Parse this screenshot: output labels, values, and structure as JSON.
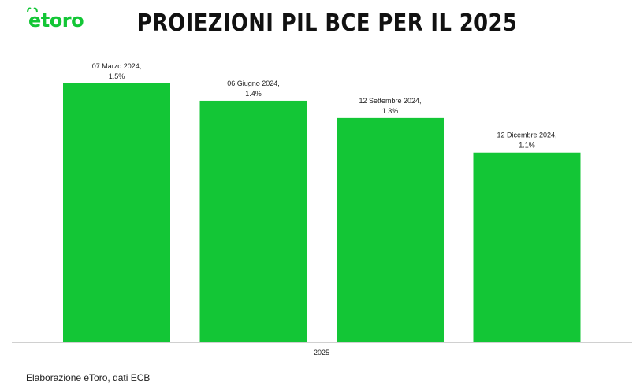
{
  "brand": {
    "logo_text": "etoro",
    "accent_color": "#13c636"
  },
  "title": "PROIEZIONI PIL BCE PER IL 2025",
  "source_note": "Elaborazione eToro, dati ECB",
  "chart_data": {
    "type": "bar",
    "title": "PROIEZIONI PIL BCE PER IL 2025",
    "categories": [
      "2025"
    ],
    "series": [
      {
        "name": "07 Marzo 2024",
        "label": "07 Marzo 2024,",
        "value_label": "1.5%",
        "values": [
          1.5
        ]
      },
      {
        "name": "06 Giugno 2024",
        "label": "06 Giugno 2024,",
        "value_label": "1.4%",
        "values": [
          1.4
        ]
      },
      {
        "name": "12 Settembre 2024",
        "label": "12 Settembre 2024,",
        "value_label": "1.3%",
        "values": [
          1.3
        ]
      },
      {
        "name": "12 Dicembre 2024",
        "label": "12 Dicembre 2024,",
        "value_label": "1.1%",
        "values": [
          1.1
        ]
      }
    ],
    "bar_color": "#13c636",
    "ylim": [
      0,
      1.5
    ],
    "grid": false,
    "legend": "none"
  }
}
